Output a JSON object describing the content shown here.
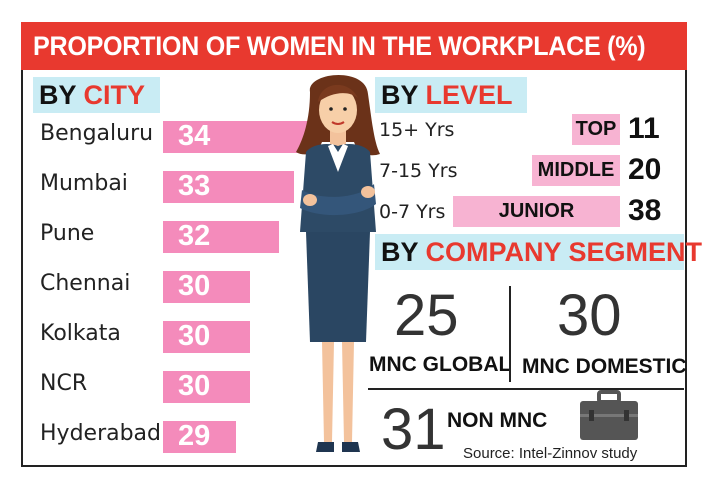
{
  "title": "PROPORTION OF WOMEN IN THE WORKPLACE (%)",
  "source": "Source: Intel-Zinnov study",
  "colors": {
    "accent_red": "#e8392f",
    "header_blue": "#c9ecf4",
    "city_bar_pink": "#f48bbb",
    "level_bar_pink": "#f7b3d2"
  },
  "chart_data": [
    {
      "type": "bar",
      "title_a": "BY",
      "title_b": "CITY",
      "categories": [
        "Bengaluru",
        "Mumbai",
        "Pune",
        "Chennai",
        "Kolkata",
        "NCR",
        "Hyderabad"
      ],
      "values": [
        34,
        33,
        32,
        30,
        30,
        30,
        29
      ]
    },
    {
      "type": "bar",
      "title_a": "BY",
      "title_b": "LEVEL",
      "ranges": [
        "15+ Yrs",
        "7-15 Yrs",
        "0-7 Yrs"
      ],
      "categories": [
        "TOP",
        "MIDDLE",
        "JUNIOR"
      ],
      "values": [
        11,
        20,
        38
      ]
    },
    {
      "type": "table",
      "title_a": "BY",
      "title_b": "COMPANY SEGMENT",
      "categories": [
        "MNC GLOBAL",
        "MNC DOMESTIC",
        "NON MNC"
      ],
      "values": [
        25,
        30,
        31
      ]
    }
  ]
}
